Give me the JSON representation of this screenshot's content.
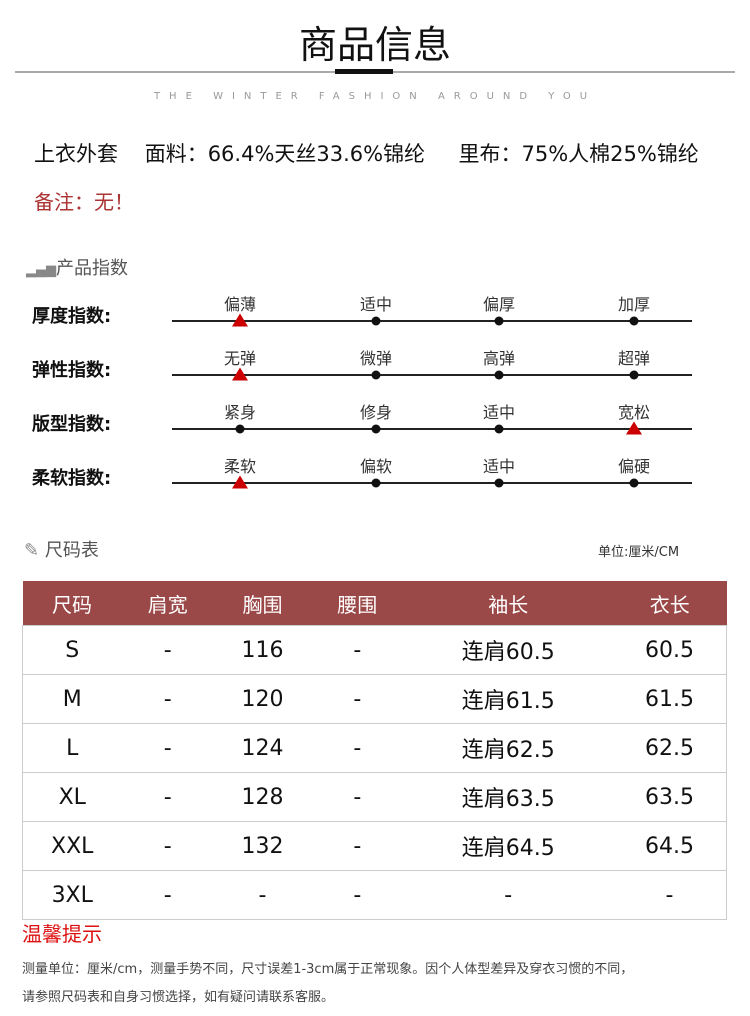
{
  "header": {
    "title": "商品信息",
    "subtitle": "THE WINTER FASHION AROUND YOU"
  },
  "fabric": "上衣外套    面料：66.4%天丝33.6%锦纶     里布：75%人棉25%锦纶",
  "note": "备注：无！",
  "index_section": {
    "title": "产品指数",
    "icon": "bar-chart-icon",
    "highlight_color": "#cc0000",
    "rows": [
      {
        "label": "厚度指数:",
        "options": [
          "偏薄",
          "适中",
          "偏厚",
          "加厚"
        ],
        "selected": 0
      },
      {
        "label": "弹性指数:",
        "options": [
          "无弹",
          "微弹",
          "高弹",
          "超弹"
        ],
        "selected": 0
      },
      {
        "label": "版型指数:",
        "options": [
          "紧身",
          "修身",
          "适中",
          "宽松"
        ],
        "selected": 3
      },
      {
        "label": "柔软指数:",
        "options": [
          "柔软",
          "偏软",
          "适中",
          "偏硬"
        ],
        "selected": 0
      }
    ]
  },
  "size_section": {
    "title": "尺码表",
    "icon": "ruler-icon",
    "unit": "单位:厘米/CM",
    "header_color": "#9b4848",
    "columns": [
      "尺码",
      "肩宽",
      "胸围",
      "腰围",
      "袖长",
      "衣长"
    ],
    "rows": [
      [
        "S",
        "-",
        "116",
        "-",
        "连肩60.5",
        "60.5"
      ],
      [
        "M",
        "-",
        "120",
        "-",
        "连肩61.5",
        "61.5"
      ],
      [
        "L",
        "-",
        "124",
        "-",
        "连肩62.5",
        "62.5"
      ],
      [
        "XL",
        "-",
        "128",
        "-",
        "连肩63.5",
        "63.5"
      ],
      [
        "XXL",
        "-",
        "132",
        "-",
        "连肩64.5",
        "64.5"
      ],
      [
        "3XL",
        "-",
        "-",
        "-",
        "-",
        "-"
      ]
    ]
  },
  "tips": {
    "title": "温馨提示",
    "lines": [
      "测量单位：厘米/cm，测量手势不同，尺寸误差1-3cm属于正常现象。因个人体型差异及穿衣习惯的不同，",
      "请参照尺码表和自身习惯选择，如有疑问请联系客服。"
    ]
  }
}
